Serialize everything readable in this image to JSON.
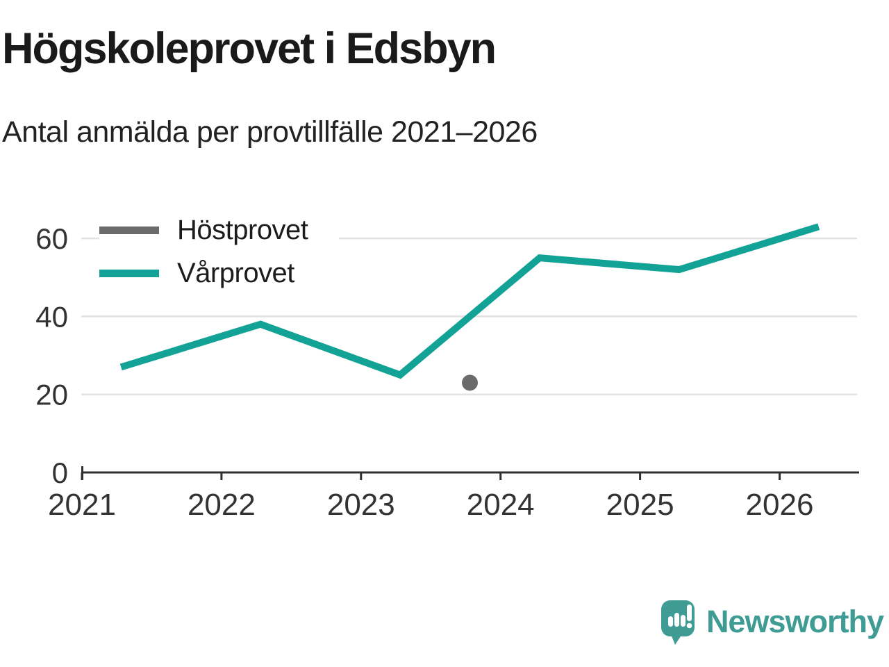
{
  "header": {
    "title": "Högskoleprovet i Edsbyn",
    "subtitle": "Antal anmälda per provtillfälle 2021–2026"
  },
  "legend": {
    "items": [
      {
        "label": "Höstprovet"
      },
      {
        "label": "Vårprovet"
      }
    ]
  },
  "chart_data": {
    "type": "line",
    "title": "Högskoleprovet i Edsbyn",
    "subtitle": "Antal anmälda per provtillfälle 2021–2026",
    "xlabel": "",
    "ylabel": "",
    "x_domain": [
      2020.995,
      2026.555
    ],
    "y_domain": [
      0,
      65.9
    ],
    "x_ticks": [
      2021,
      2022,
      2023,
      2024,
      2025,
      2026
    ],
    "y_ticks": [
      0,
      20,
      40,
      60
    ],
    "grid": "horizontal",
    "legend_position": "top-left",
    "series": [
      {
        "name": "Höstprovet",
        "style": "point",
        "color": "#6b6b6b",
        "points": [
          {
            "x": 2023.78,
            "y": 23
          }
        ]
      },
      {
        "name": "Vårprovet",
        "style": "line",
        "color": "#12a296",
        "x": [
          2021.28,
          2022.28,
          2023.28,
          2024.28,
          2025.28,
          2026.28
        ],
        "values": [
          27,
          38,
          25,
          55,
          52,
          63
        ]
      }
    ]
  },
  "brand": {
    "name": "Newsworthy"
  },
  "colors": {
    "accent_teal": "#12a296",
    "logo_teal": "#3f9c94",
    "point_gray": "#6b6b6b",
    "gridline": "#e2e2e2",
    "axis": "#2f2f2f",
    "text": "#1a1a1a"
  }
}
